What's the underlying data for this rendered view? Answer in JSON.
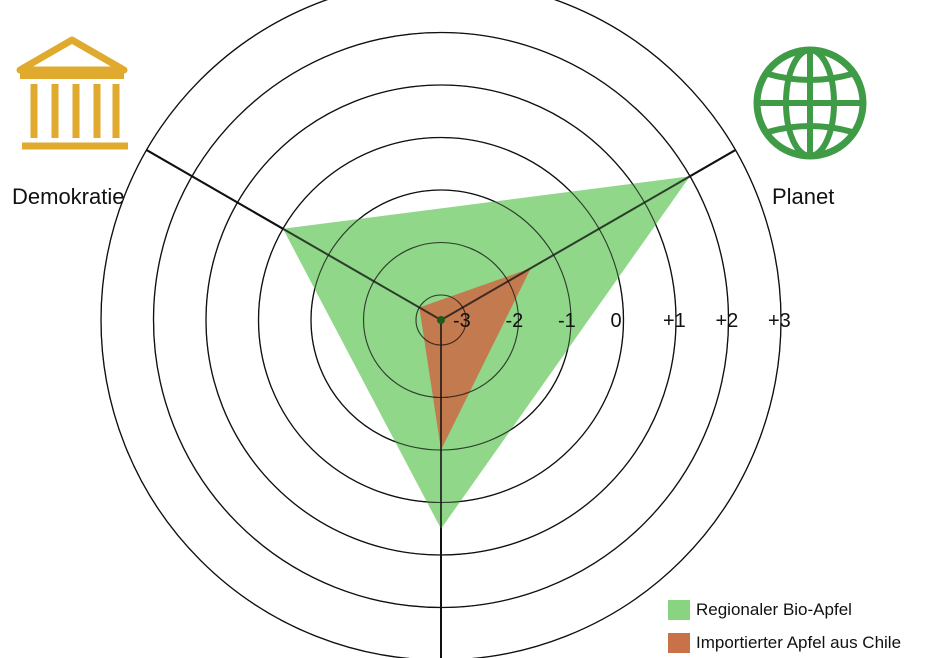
{
  "chart_data": {
    "type": "radar",
    "axes": [
      "Demokratie",
      "Planet",
      ""
    ],
    "axis_icons": [
      "building-icon",
      "globe-icon"
    ],
    "rings": [
      "-3",
      "-2",
      "-1",
      "0",
      "+1",
      "+2",
      "+3"
    ],
    "range": [
      -3,
      3
    ],
    "series": [
      {
        "name": "Regionaler Bio-Apfel",
        "color": "#88d480",
        "values": [
          0,
          2,
          0.5
        ]
      },
      {
        "name": "Importierter Apfel aus Chile",
        "color": "#c9724a",
        "values": [
          -3,
          -1.5,
          -1
        ]
      }
    ],
    "legend": "bottom-right"
  },
  "colors": {
    "icon_democracy": "#e0aa2e",
    "icon_planet": "#3f9b46"
  }
}
